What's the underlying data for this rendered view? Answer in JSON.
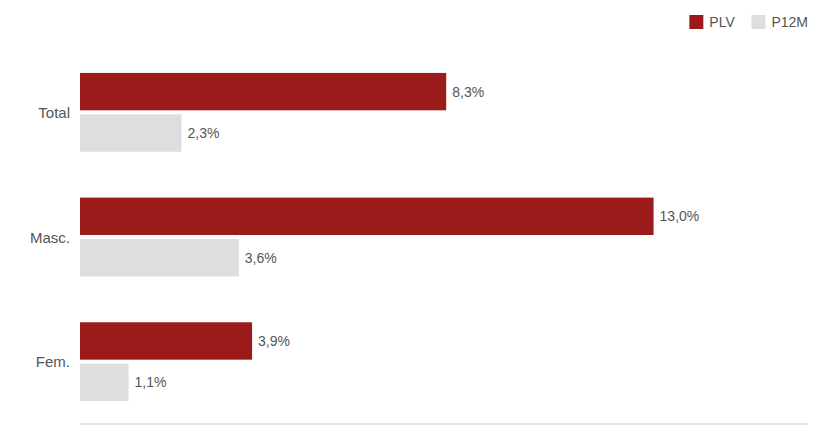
{
  "chart_data": {
    "type": "bar",
    "orientation": "horizontal",
    "categories": [
      "Total",
      "Masc.",
      "Fem."
    ],
    "series": [
      {
        "name": "PLV",
        "color": "#9B1B1B",
        "values": [
          8.3,
          13.0,
          3.9
        ],
        "value_labels": [
          "8,3%",
          "13,0%",
          "3,9%"
        ]
      },
      {
        "name": "P12M",
        "color": "#DEDEDE",
        "values": [
          2.3,
          3.6,
          1.1
        ],
        "value_labels": [
          "2,3%",
          "3,6%",
          "1,1%"
        ]
      }
    ],
    "xlim": [
      0,
      16.5
    ],
    "data_labels": true,
    "tick_labels": "y",
    "legend": "upper right",
    "grid": false
  }
}
